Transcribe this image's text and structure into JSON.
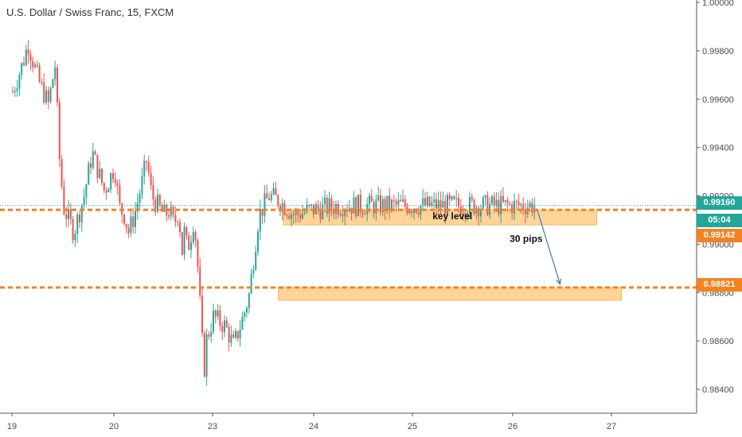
{
  "header": {
    "title": "U.S. Dollar / Swiss Franc, 15, FXCM"
  },
  "colors": {
    "up": "#26a69a",
    "down": "#ef5350",
    "level": "#f58220",
    "zone": "#ffcd86",
    "current": "#26a69a",
    "arrow": "#3d7ab8",
    "grid_axis": "#555555"
  },
  "chart_data": {
    "type": "candlestick",
    "symbol": "U.S. Dollar / Swiss Franc",
    "interval": "15",
    "source": "FXCM",
    "x_tick_labels": [
      "19",
      "20",
      "23",
      "24",
      "25",
      "26",
      "27"
    ],
    "y_tick_labels": [
      "1.00000",
      "0.99800",
      "0.99600",
      "0.99400",
      "0.99200",
      "0.99000",
      "0.98800",
      "0.98600",
      "0.98400"
    ],
    "ylim": [
      0.9828,
      1.0002
    ],
    "price_tags": [
      {
        "label": "0.99160",
        "color": "#26a69a"
      },
      {
        "label": "05:04",
        "color": "#26a69a"
      },
      {
        "label": "0.99142",
        "color": "#f58220"
      },
      {
        "label": "0.98821",
        "color": "#f58220"
      }
    ],
    "levels": [
      {
        "price": 0.99142,
        "style": "dashed"
      },
      {
        "price": 0.98821,
        "style": "dashed"
      }
    ],
    "current_price": 0.9916,
    "zones": [
      {
        "from_day": 23.7,
        "to_day": 26.85,
        "low": 0.9908,
        "high": 0.99142,
        "label": "key level"
      },
      {
        "from_day": 23.65,
        "to_day": 27.1,
        "low": 0.98768,
        "high": 0.98821,
        "label": ""
      }
    ],
    "annotations": [
      {
        "text": "key level"
      },
      {
        "text": "30 pips"
      }
    ],
    "projection_arrow": {
      "from_day": 26.25,
      "from_price": 0.9914,
      "to_day": 26.48,
      "to_price": 0.98835
    },
    "price_path_anchors": [
      [
        19.0,
        0.9963
      ],
      [
        19.1,
        0.9975
      ],
      [
        19.15,
        0.9983
      ],
      [
        19.25,
        0.9968
      ],
      [
        19.35,
        0.9958
      ],
      [
        19.42,
        0.9975
      ],
      [
        19.45,
        0.994
      ],
      [
        19.5,
        0.9915
      ],
      [
        19.6,
        0.9905
      ],
      [
        19.7,
        0.992
      ],
      [
        19.78,
        0.9938
      ],
      [
        19.9,
        0.9922
      ],
      [
        20.0,
        0.9932
      ],
      [
        20.1,
        0.9915
      ],
      [
        20.2,
        0.9912
      ],
      [
        20.28,
        0.9905
      ],
      [
        20.4,
        0.9912
      ],
      [
        20.55,
        0.9925
      ],
      [
        20.65,
        0.9935
      ],
      [
        20.75,
        0.992
      ],
      [
        20.9,
        0.9915
      ],
      [
        21.0,
        0.9912
      ],
      [
        21.2,
        0.9914
      ],
      [
        21.4,
        0.9908
      ],
      [
        21.5,
        0.9912
      ],
      [
        21.58,
        0.9914
      ],
      [
        21.7,
        0.9896
      ],
      [
        21.8,
        0.9905
      ],
      [
        21.92,
        0.9898
      ],
      [
        22.05,
        0.9903
      ],
      [
        22.15,
        0.991
      ],
      [
        22.3,
        0.99
      ],
      [
        22.4,
        0.988
      ],
      [
        22.5,
        0.9868
      ],
      [
        22.55,
        0.9855
      ],
      [
        22.62,
        0.9848
      ],
      [
        22.7,
        0.986
      ],
      [
        22.85,
        0.9865
      ],
      [
        23.0,
        0.987
      ],
      [
        23.12,
        0.9866
      ],
      [
        23.2,
        0.9858
      ],
      [
        23.28,
        0.9868
      ],
      [
        23.35,
        0.9878
      ],
      [
        23.45,
        0.9912
      ],
      [
        23.55,
        0.992
      ],
      [
        23.65,
        0.9918
      ],
      [
        23.8,
        0.9912
      ],
      [
        23.95,
        0.9914
      ],
      [
        24.1,
        0.9915
      ],
      [
        24.25,
        0.9916
      ]
    ]
  }
}
